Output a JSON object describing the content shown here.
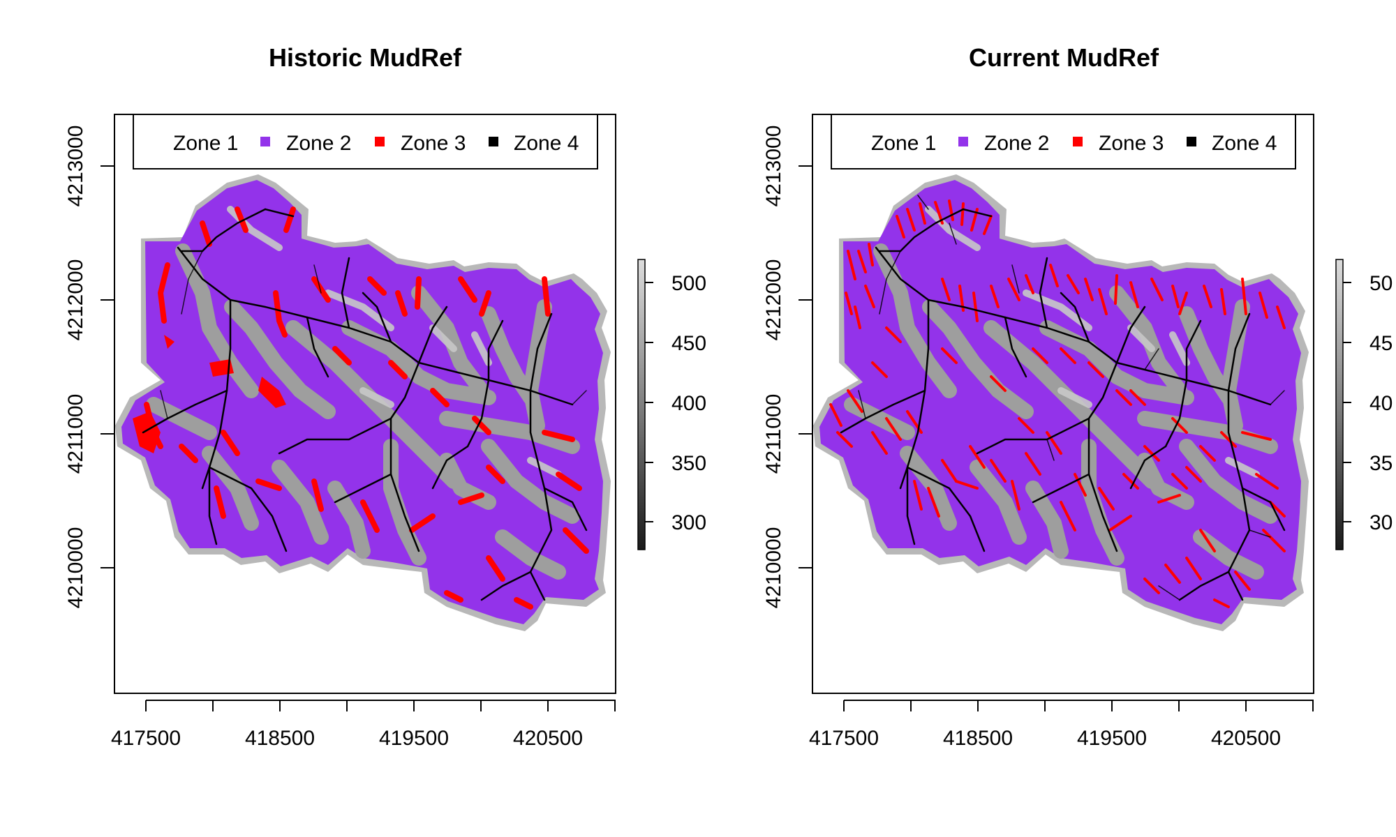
{
  "panels": [
    {
      "id": "historic",
      "title": "Historic MudRef",
      "legend": [
        "Zone 1",
        "Zone 2",
        "Zone 3",
        "Zone 4"
      ],
      "x_ticks": [
        "417500",
        "418500",
        "419500",
        "420500"
      ],
      "y_ticks": [
        "4213000",
        "4212000",
        "4211000",
        "4210000"
      ],
      "colorbar_ticks": [
        "500",
        "450",
        "400",
        "350",
        "300"
      ],
      "channel_density": "low"
    },
    {
      "id": "current",
      "title": "Current MudRef",
      "legend": [
        "Zone 1",
        "Zone 2",
        "Zone 3",
        "Zone 4"
      ],
      "x_ticks": [
        "417500",
        "418500",
        "419500",
        "420500"
      ],
      "y_ticks": [
        "4213000",
        "4212000",
        "4211000",
        "4210000"
      ],
      "colorbar_ticks": [
        "50",
        "45",
        "40",
        "35",
        "30"
      ],
      "channel_density": "high"
    }
  ],
  "colors": {
    "zone1": "#b8b8b8",
    "zone2": "#9333ea",
    "zone3": "#ff0000",
    "zone4": "#000000",
    "axis": "#000000"
  }
}
